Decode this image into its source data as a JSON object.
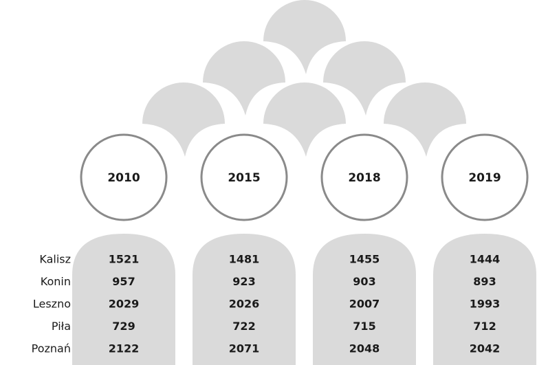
{
  "table": {
    "columns": [
      "2010",
      "2015",
      "2018",
      "2019"
    ],
    "rows": [
      {
        "label": "Kalisz",
        "values": [
          1521,
          1481,
          1455,
          1444
        ]
      },
      {
        "label": "Konin",
        "values": [
          957,
          923,
          903,
          893
        ]
      },
      {
        "label": "Leszno",
        "values": [
          2029,
          2026,
          2007,
          1993
        ]
      },
      {
        "label": "Piła",
        "values": [
          729,
          722,
          715,
          712
        ]
      },
      {
        "label": "Poznań",
        "values": [
          2122,
          2071,
          2048,
          2042
        ]
      }
    ]
  }
}
